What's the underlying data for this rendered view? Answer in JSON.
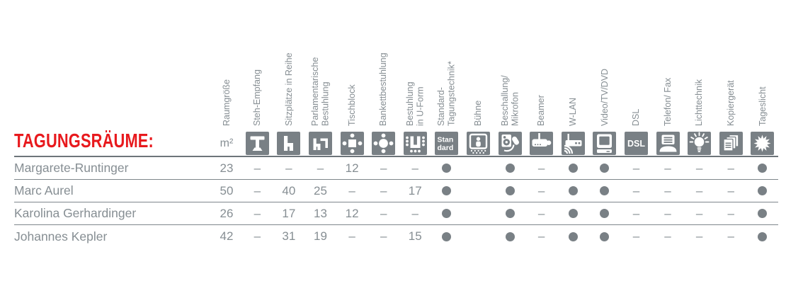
{
  "title": "TAGUNGSRÄUME:",
  "colors": {
    "accent_red": "#e8191d",
    "icon_gray": "#798085",
    "text_gray": "#868e93",
    "line_gray": "#6d757a"
  },
  "table": {
    "unit_label": "m²",
    "dot_meaning": "available",
    "dash": "–",
    "columns": [
      {
        "label": "Raumgröße",
        "icon": "m2-unit"
      },
      {
        "label": "Steh-Empfang",
        "icon": "standing-table-icon"
      },
      {
        "label": "Sitzplätze in Reihe",
        "icon": "row-seating-icon"
      },
      {
        "label": "Parlamentarische\nBestuhlung",
        "icon": "parliament-seating-icon"
      },
      {
        "label": "Tischblock",
        "icon": "table-block-icon"
      },
      {
        "label": "Bankettbestuhlung",
        "icon": "banquet-seating-icon"
      },
      {
        "label": "Bestuhlung\nin U-Form",
        "icon": "u-shape-seating-icon"
      },
      {
        "label": "Standard-\nTagungstechnik*",
        "icon": "standard-icon"
      },
      {
        "label": "Bühne",
        "icon": "stage-icon"
      },
      {
        "label": "Beschallung/\nMikrofon",
        "icon": "speaker-microphone-icon"
      },
      {
        "label": "Beamer",
        "icon": "projector-icon"
      },
      {
        "label": "W-LAN",
        "icon": "wlan-icon"
      },
      {
        "label": "Video/TV/DVD",
        "icon": "video-tv-icon"
      },
      {
        "label": "DSL",
        "icon": "dsl-icon"
      },
      {
        "label": "Telefon/ Fax",
        "icon": "telephone-fax-icon"
      },
      {
        "label": "Lichttechnik",
        "icon": "light-icon"
      },
      {
        "label": "Kopiergerät",
        "icon": "copier-icon"
      },
      {
        "label": "Tageslicht",
        "icon": "daylight-icon"
      }
    ],
    "icon_texts": {
      "standard": [
        "Stan",
        "dard"
      ],
      "dsl": "DSL"
    },
    "rows": [
      {
        "name": "Margarete-Runtinger",
        "values": [
          "23",
          "–",
          "–",
          "–",
          "12",
          "–",
          "–",
          "dot",
          "",
          "dot",
          "–",
          "dot",
          "dot",
          "–",
          "–",
          "–",
          "–",
          "dot"
        ]
      },
      {
        "name": "Marc Aurel",
        "values": [
          "50",
          "–",
          "40",
          "25",
          "–",
          "–",
          "17",
          "dot",
          "",
          "dot",
          "–",
          "dot",
          "dot",
          "–",
          "–",
          "–",
          "–",
          "dot"
        ]
      },
      {
        "name": "Karolina Gerhardinger",
        "values": [
          "26",
          "–",
          "17",
          "13",
          "12",
          "–",
          "–",
          "dot",
          "",
          "dot",
          "–",
          "dot",
          "dot",
          "–",
          "–",
          "–",
          "–",
          "dot"
        ]
      },
      {
        "name": "Johannes Kepler",
        "values": [
          "42",
          "–",
          "31",
          "19",
          "–",
          "–",
          "15",
          "dot",
          "",
          "dot",
          "–",
          "dot",
          "dot",
          "–",
          "–",
          "–",
          "–",
          "dot"
        ]
      }
    ]
  }
}
